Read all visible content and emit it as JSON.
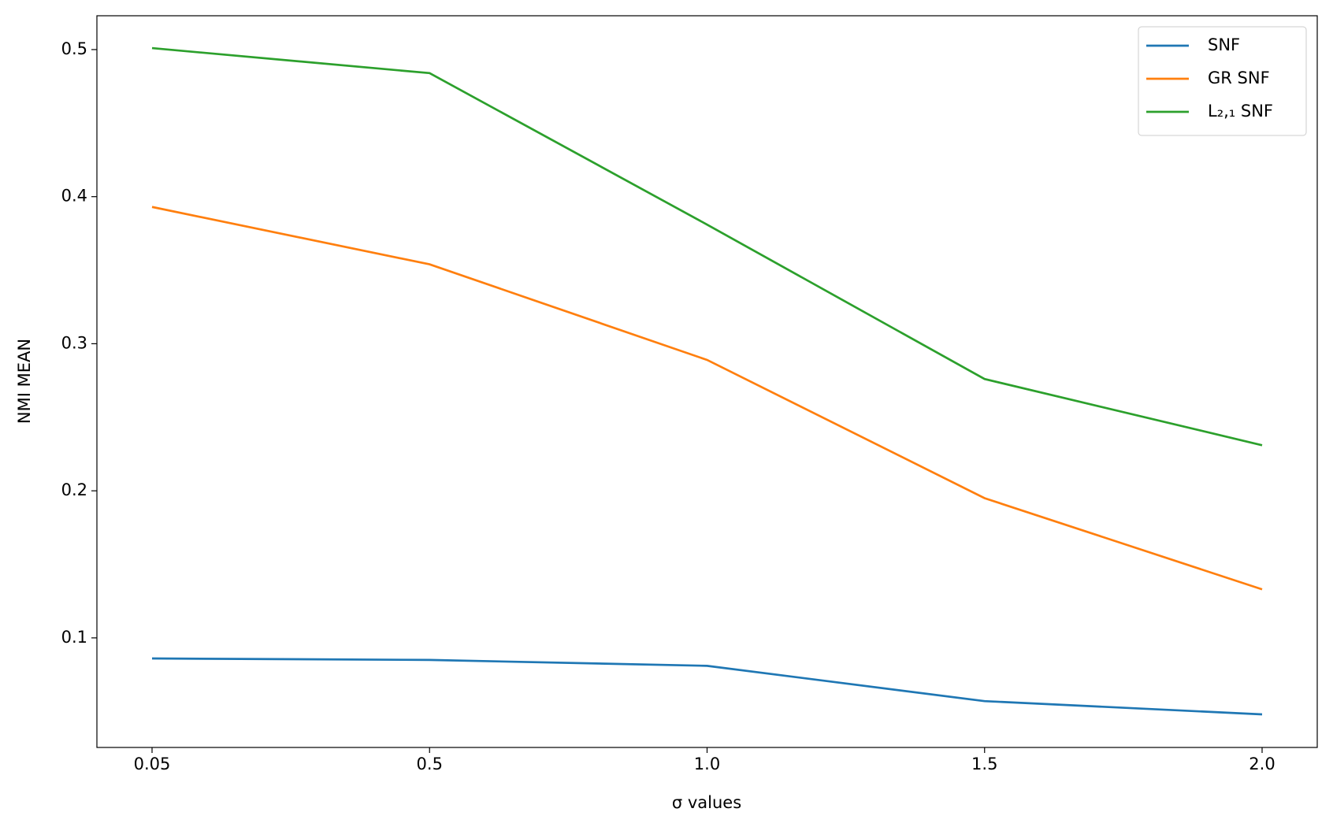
{
  "chart_data": {
    "type": "line",
    "xlabel": "σ values",
    "ylabel": "NMI MEAN",
    "categories": [
      "0.05",
      "0.5",
      "1.0",
      "1.5",
      "2.0"
    ],
    "series": [
      {
        "name": "SNF",
        "color": "#1f77b4",
        "values": [
          0.086,
          0.085,
          0.081,
          0.057,
          0.048
        ]
      },
      {
        "name": "GR SNF",
        "color": "#ff7f0e",
        "values": [
          0.393,
          0.354,
          0.289,
          0.195,
          0.133
        ]
      },
      {
        "name": "L₂,₁ SNF",
        "color": "#2ca02c",
        "values": [
          0.501,
          0.484,
          0.381,
          0.276,
          0.231
        ]
      }
    ],
    "ylim": [
      0.0255,
      0.523
    ],
    "yticks": [
      0.1,
      0.2,
      0.3,
      0.4,
      0.5
    ],
    "grid": false,
    "legend": "upper right"
  }
}
